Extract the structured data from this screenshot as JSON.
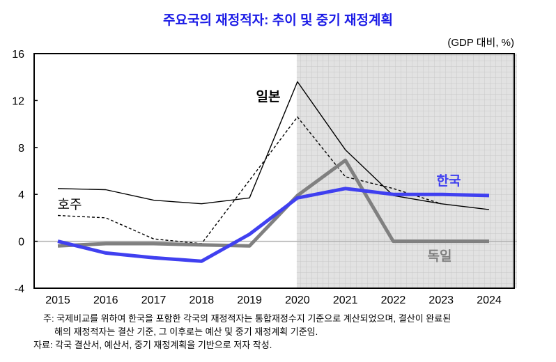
{
  "chart_data": {
    "type": "line",
    "title": "주요국의 재정적자: 추이 및 중기 재정계획",
    "unit_label": "(GDP 대비, %)",
    "x": [
      2015,
      2016,
      2017,
      2018,
      2019,
      2020,
      2021,
      2022,
      2023,
      2024
    ],
    "x_tick_labels": [
      "2015",
      "2016",
      "2017",
      "2018",
      "2019",
      "2020",
      "2021",
      "2022",
      "2023",
      "2024"
    ],
    "ylim": [
      -4,
      16
    ],
    "y_ticks": [
      -4,
      0,
      4,
      8,
      12,
      16
    ],
    "y_tick_labels": [
      "-4",
      "0",
      "4",
      "8",
      "12",
      "16"
    ],
    "shaded_region": {
      "from": 2020,
      "to": "end",
      "color": "#e0e0e0",
      "pattern": "grid"
    },
    "zero_line": true,
    "series": [
      {
        "name": "일본",
        "color": "#000000",
        "style": "solid-thin",
        "values": [
          4.5,
          4.4,
          3.5,
          3.2,
          3.7,
          13.6,
          7.8,
          3.9,
          3.2,
          2.7
        ]
      },
      {
        "name": "호주",
        "color": "#000000",
        "style": "dashed",
        "values": [
          2.2,
          2.0,
          0.2,
          -0.2,
          5.2,
          10.6,
          5.5,
          4.5,
          3.2,
          null
        ]
      },
      {
        "name": "한국",
        "color": "#4040f0",
        "style": "thick",
        "values": [
          0.0,
          -1.0,
          -1.4,
          -1.7,
          0.6,
          3.7,
          4.5,
          4.0,
          4.0,
          3.9
        ]
      },
      {
        "name": "독일",
        "color": "#808080",
        "style": "thick",
        "values": [
          -0.4,
          -0.2,
          -0.2,
          -0.3,
          -0.4,
          3.9,
          6.9,
          0.0,
          0.0,
          0.0
        ]
      }
    ]
  },
  "notes": {
    "note_line1": "주: 국제비교를 위하여 한국을 포함한 각국의 재정적자는 통합재정수지 기준으로 계산되었으며, 결산이 완료된",
    "note_line2": "해의 재정적자는 결산 기준, 그 이후로는 예산 및 중기 재정계획 기준임.",
    "source": "자료: 각국 결산서, 예산서, 중기 재정계획을 기반으로 저자 작성."
  }
}
